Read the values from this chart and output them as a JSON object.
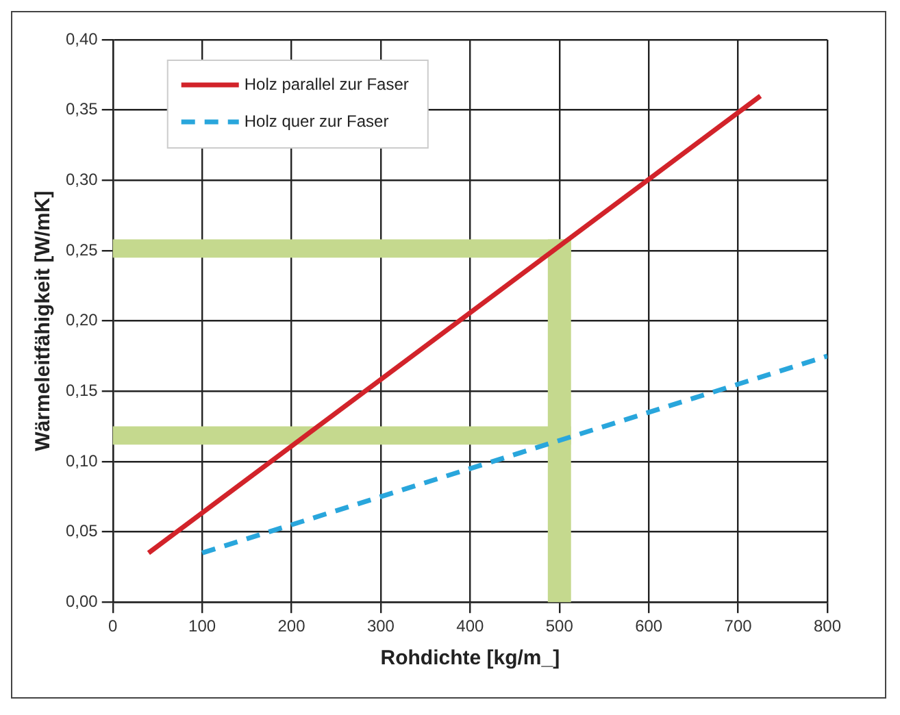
{
  "chart_data": {
    "type": "line",
    "xlabel": "Rohdichte [kg/m_]",
    "ylabel": "Wärmeleitfähigkeit [W/mK]",
    "xlim": [
      0,
      800
    ],
    "xticks": [
      0,
      100,
      200,
      300,
      400,
      500,
      600,
      700,
      800
    ],
    "ylim": [
      0,
      0.4
    ],
    "yticks": [
      {
        "value": 0,
        "label": "0,00"
      },
      {
        "value": 0.05,
        "label": "0,05"
      },
      {
        "value": 0.1,
        "label": "0,10"
      },
      {
        "value": 0.15,
        "label": "0,15"
      },
      {
        "value": 0.2,
        "label": "0,20"
      },
      {
        "value": 0.25,
        "label": "0,25"
      },
      {
        "value": 0.3,
        "label": "0,30"
      },
      {
        "value": 0.35,
        "label": "0,35"
      },
      {
        "value": 0.4,
        "label": "0,40"
      }
    ],
    "grid": true,
    "legend": "top left",
    "marker": "none",
    "series": [
      {
        "name": "Holz parallel zur Faser",
        "color": "#d2232a",
        "x": [
          40,
          725
        ],
        "values": [
          0.035,
          0.36
        ],
        "line_style": "solid"
      },
      {
        "name": "Holz quer zur Faser",
        "color": "#29a6dc",
        "x": [
          100,
          800
        ],
        "values": [
          0.035,
          0.175
        ],
        "line_style": "dashed"
      }
    ],
    "bands": [
      {
        "axis": "y",
        "from": 0.245,
        "to": 0.258,
        "color": "#c5d98e"
      },
      {
        "axis": "y",
        "from": 0.112,
        "to": 0.125,
        "color": "#c5d98e"
      },
      {
        "axis": "x",
        "from": 487,
        "to": 513,
        "color": "#c5d98e"
      }
    ]
  }
}
